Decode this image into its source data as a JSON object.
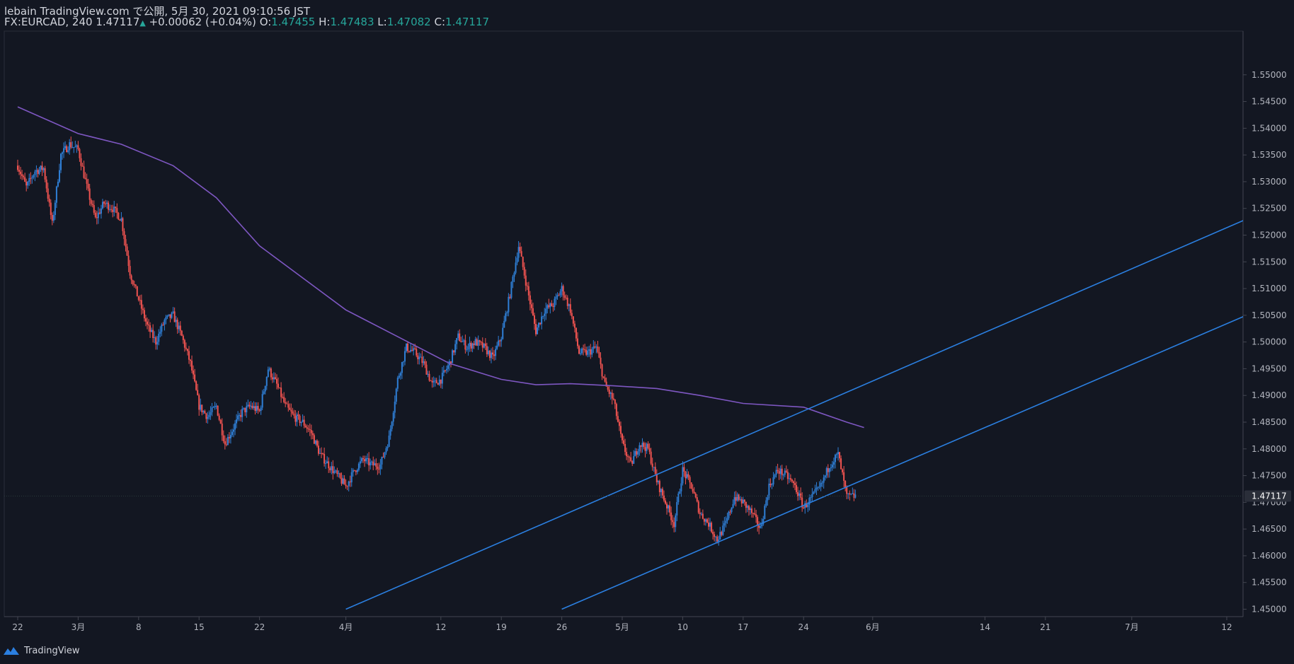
{
  "header": {
    "publish_line": "lebain TradingView.com で公開, 5月 30, 2021 09:10:56 JST",
    "symbol": "FX:EURCAD, 240",
    "last": "1.47117",
    "change_arrow": "▲",
    "change": "+0.00062 (+0.04%)",
    "o_label": "O:",
    "o_value": "1.47455",
    "h_label": "H:",
    "h_value": "1.47483",
    "l_label": "L:",
    "l_value": "1.47082",
    "c_label": "C:",
    "c_value": "1.47117"
  },
  "footer": {
    "brand": "TradingView"
  },
  "colors": {
    "background": "#131722",
    "up": "#2f7fd6",
    "down": "#ef5350",
    "ma": "#7e57c2",
    "trendline": "#2b7fe0",
    "axis_text": "#b2b5be",
    "value_up": "#26a69a"
  },
  "chart_data": {
    "type": "candlestick",
    "symbol": "FX:EURCAD",
    "interval": "240",
    "ylim": [
      1.45,
      1.555
    ],
    "y_ticks": [
      "1.55000",
      "1.54500",
      "1.54000",
      "1.53500",
      "1.53000",
      "1.52500",
      "1.52000",
      "1.51500",
      "1.51000",
      "1.50500",
      "1.50000",
      "1.49500",
      "1.49000",
      "1.48500",
      "1.48000",
      "1.47500",
      "1.47000",
      "1.46500",
      "1.46000",
      "1.45500",
      "1.45000"
    ],
    "x_ticks": [
      {
        "label": "22",
        "date": "2021-02-22"
      },
      {
        "label": "3月",
        "date": "2021-03-01"
      },
      {
        "label": "8",
        "date": "2021-03-08"
      },
      {
        "label": "15",
        "date": "2021-03-15"
      },
      {
        "label": "22",
        "date": "2021-03-22"
      },
      {
        "label": "4月",
        "date": "2021-04-01"
      },
      {
        "label": "12",
        "date": "2021-04-12"
      },
      {
        "label": "19",
        "date": "2021-04-19"
      },
      {
        "label": "26",
        "date": "2021-04-26"
      },
      {
        "label": "5月",
        "date": "2021-05-03"
      },
      {
        "label": "10",
        "date": "2021-05-10"
      },
      {
        "label": "17",
        "date": "2021-05-17"
      },
      {
        "label": "24",
        "date": "2021-05-24"
      },
      {
        "label": "6月",
        "date": "2021-06-01"
      },
      {
        "label": "14",
        "date": "2021-06-14"
      },
      {
        "label": "21",
        "date": "2021-06-21"
      },
      {
        "label": "7月",
        "date": "2021-07-01"
      },
      {
        "label": "12",
        "date": "2021-07-12"
      }
    ],
    "price_path": [
      [
        "2021-02-22",
        1.533
      ],
      [
        "2021-02-23",
        1.529
      ],
      [
        "2021-02-24",
        1.532
      ],
      [
        "2021-02-25",
        1.5325
      ],
      [
        "2021-02-26",
        1.522
      ],
      [
        "2021-02-27",
        1.535
      ],
      [
        "2021-02-28",
        1.537
      ],
      [
        "2021-03-01",
        1.536
      ],
      [
        "2021-03-02",
        1.529
      ],
      [
        "2021-03-03",
        1.523
      ],
      [
        "2021-03-04",
        1.526
      ],
      [
        "2021-03-05",
        1.525
      ],
      [
        "2021-03-06",
        1.523
      ],
      [
        "2021-03-07",
        1.513
      ],
      [
        "2021-03-08",
        1.508
      ],
      [
        "2021-03-09",
        1.503
      ],
      [
        "2021-03-10",
        1.5
      ],
      [
        "2021-03-11",
        1.504
      ],
      [
        "2021-03-12",
        1.505
      ],
      [
        "2021-03-13",
        1.501
      ],
      [
        "2021-03-14",
        1.496
      ],
      [
        "2021-03-15",
        1.488
      ],
      [
        "2021-03-16",
        1.486
      ],
      [
        "2021-03-17",
        1.488
      ],
      [
        "2021-03-18",
        1.481
      ],
      [
        "2021-03-19",
        1.484
      ],
      [
        "2021-03-20",
        1.487
      ],
      [
        "2021-03-21",
        1.488
      ],
      [
        "2021-03-22",
        1.487
      ],
      [
        "2021-03-23",
        1.495
      ],
      [
        "2021-03-24",
        1.492
      ],
      [
        "2021-03-25",
        1.488
      ],
      [
        "2021-03-26",
        1.486
      ],
      [
        "2021-03-27",
        1.485
      ],
      [
        "2021-03-28",
        1.483
      ],
      [
        "2021-03-29",
        1.479
      ],
      [
        "2021-03-30",
        1.477
      ],
      [
        "2021-03-31",
        1.475
      ],
      [
        "2021-04-01",
        1.473
      ],
      [
        "2021-04-02",
        1.476
      ],
      [
        "2021-04-03",
        1.478
      ],
      [
        "2021-04-04",
        1.477
      ],
      [
        "2021-04-05",
        1.477
      ],
      [
        "2021-04-06",
        1.482
      ],
      [
        "2021-04-07",
        1.493
      ],
      [
        "2021-04-08",
        1.499
      ],
      [
        "2021-04-09",
        1.498
      ],
      [
        "2021-04-10",
        1.496
      ],
      [
        "2021-04-11",
        1.492
      ],
      [
        "2021-04-12",
        1.493
      ],
      [
        "2021-04-13",
        1.496
      ],
      [
        "2021-04-14",
        1.501
      ],
      [
        "2021-04-15",
        1.499
      ],
      [
        "2021-04-16",
        1.5
      ],
      [
        "2021-04-17",
        1.499
      ],
      [
        "2021-04-18",
        1.497
      ],
      [
        "2021-04-19",
        1.501
      ],
      [
        "2021-04-20",
        1.509
      ],
      [
        "2021-04-21",
        1.518
      ],
      [
        "2021-04-22",
        1.51
      ],
      [
        "2021-04-23",
        1.502
      ],
      [
        "2021-04-24",
        1.506
      ],
      [
        "2021-04-25",
        1.507
      ],
      [
        "2021-04-26",
        1.51
      ],
      [
        "2021-04-27",
        1.506
      ],
      [
        "2021-04-28",
        1.498
      ],
      [
        "2021-04-29",
        1.498
      ],
      [
        "2021-04-30",
        1.499
      ],
      [
        "2021-05-01",
        1.492
      ],
      [
        "2021-05-02",
        1.489
      ],
      [
        "2021-05-03",
        1.481
      ],
      [
        "2021-05-04",
        1.477
      ],
      [
        "2021-05-05",
        1.481
      ],
      [
        "2021-05-06",
        1.48
      ],
      [
        "2021-05-07",
        1.474
      ],
      [
        "2021-05-08",
        1.47
      ],
      [
        "2021-05-09",
        1.466
      ],
      [
        "2021-05-10",
        1.476
      ],
      [
        "2021-05-11",
        1.473
      ],
      [
        "2021-05-12",
        1.468
      ],
      [
        "2021-05-13",
        1.466
      ],
      [
        "2021-05-14",
        1.463
      ],
      [
        "2021-05-15",
        1.466
      ],
      [
        "2021-05-16",
        1.471
      ],
      [
        "2021-05-17",
        1.47
      ],
      [
        "2021-05-18",
        1.468
      ],
      [
        "2021-05-19",
        1.465
      ],
      [
        "2021-05-20",
        1.473
      ],
      [
        "2021-05-21",
        1.476
      ],
      [
        "2021-05-22",
        1.475
      ],
      [
        "2021-05-23",
        1.473
      ],
      [
        "2021-05-24",
        1.469
      ],
      [
        "2021-05-25",
        1.471
      ],
      [
        "2021-05-26",
        1.473
      ],
      [
        "2021-05-27",
        1.477
      ],
      [
        "2021-05-28",
        1.479
      ],
      [
        "2021-05-29",
        1.471
      ],
      [
        "2021-05-30",
        1.4712
      ]
    ],
    "moving_average": [
      [
        "2021-02-22",
        1.544
      ],
      [
        "2021-03-01",
        1.539
      ],
      [
        "2021-03-06",
        1.537
      ],
      [
        "2021-03-12",
        1.533
      ],
      [
        "2021-03-17",
        1.527
      ],
      [
        "2021-03-22",
        1.518
      ],
      [
        "2021-03-27",
        1.512
      ],
      [
        "2021-04-01",
        1.506
      ],
      [
        "2021-04-07",
        1.501
      ],
      [
        "2021-04-13",
        1.496
      ],
      [
        "2021-04-19",
        1.493
      ],
      [
        "2021-04-23",
        1.492
      ],
      [
        "2021-04-27",
        1.4922
      ],
      [
        "2021-05-02",
        1.4918
      ],
      [
        "2021-05-07",
        1.4913
      ],
      [
        "2021-05-12",
        1.49
      ],
      [
        "2021-05-17",
        1.4885
      ],
      [
        "2021-05-24",
        1.4878
      ],
      [
        "2021-05-29",
        1.485
      ],
      [
        "2021-05-31",
        1.484
      ]
    ],
    "trendlines": [
      {
        "points": [
          [
            "2021-04-01",
            1.45
          ],
          [
            "2021-07-15",
            1.5235
          ]
        ]
      },
      {
        "points": [
          [
            "2021-04-26",
            1.45
          ],
          [
            "2021-07-15",
            1.5055
          ]
        ]
      }
    ],
    "last_price": 1.47117,
    "last_price_label": "1.47117"
  }
}
